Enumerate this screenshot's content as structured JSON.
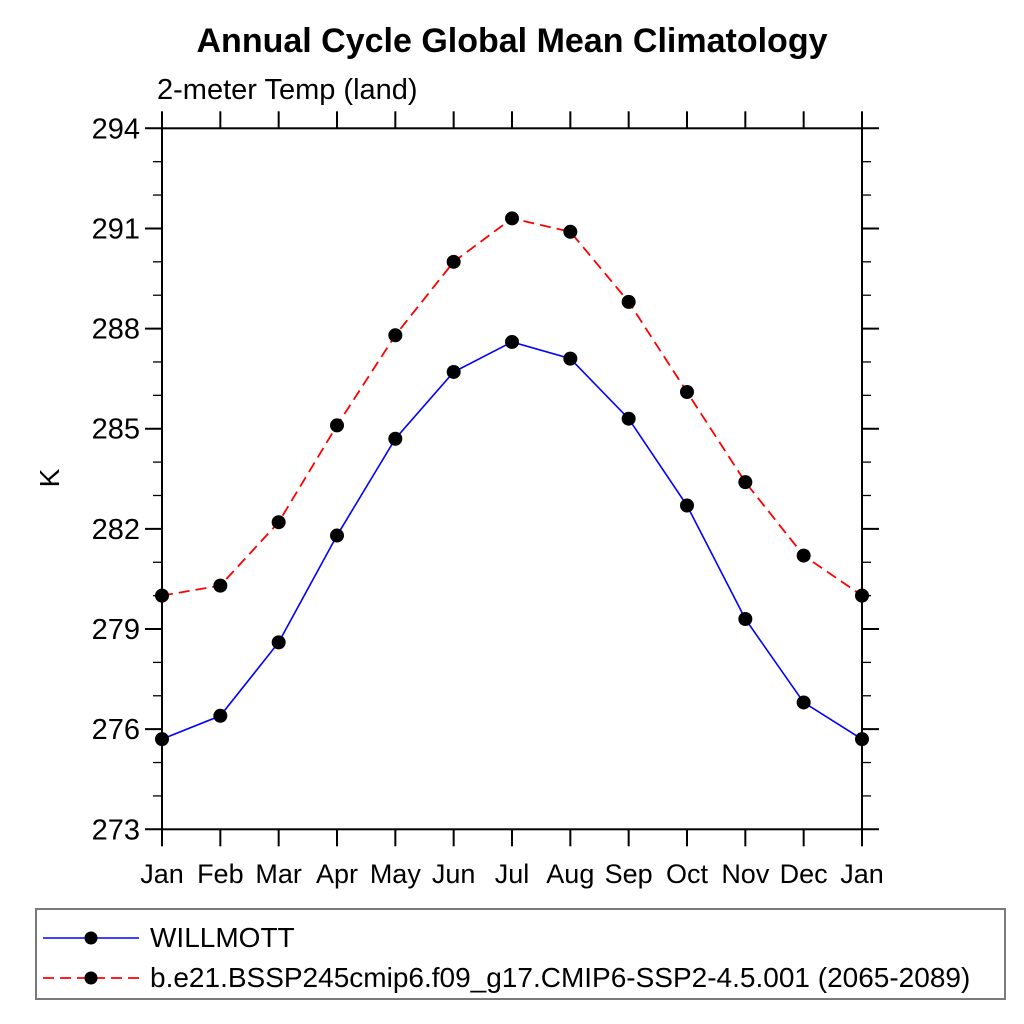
{
  "title": "Annual Cycle Global Mean Climatology",
  "subtitle": "2-meter Temp (land)",
  "chart_data": {
    "type": "line",
    "title": "Annual Cycle Global Mean Climatology",
    "subtitle": "2-meter Temp (land)",
    "xlabel": "",
    "ylabel": "K",
    "ylim": [
      273,
      294
    ],
    "ytick_major": [
      273,
      276,
      279,
      282,
      285,
      288,
      291,
      294
    ],
    "ytick_minor_step": 1,
    "grid": false,
    "legend_position": "bottom",
    "categories": [
      "Jan",
      "Feb",
      "Mar",
      "Apr",
      "May",
      "Jun",
      "Jul",
      "Aug",
      "Sep",
      "Oct",
      "Nov",
      "Dec",
      "Jan"
    ],
    "series": [
      {
        "name": "WILLMOTT",
        "color": "#0000ff",
        "line_style": "solid",
        "marker": "filled-circle",
        "marker_color": "#000000",
        "values": [
          275.7,
          276.4,
          278.6,
          281.8,
          284.7,
          286.7,
          287.6,
          287.1,
          285.3,
          282.7,
          279.3,
          276.8,
          275.7
        ]
      },
      {
        "name": "b.e21.BSSP245cmip6.f09_g17.CMIP6-SSP2-4.5.001 (2065-2089)",
        "color": "#ff0000",
        "line_style": "dashed",
        "marker": "filled-circle",
        "marker_color": "#000000",
        "values": [
          280.0,
          280.3,
          282.2,
          285.1,
          287.8,
          290.0,
          291.3,
          290.9,
          288.8,
          286.1,
          283.4,
          281.2,
          280.0
        ]
      }
    ]
  }
}
